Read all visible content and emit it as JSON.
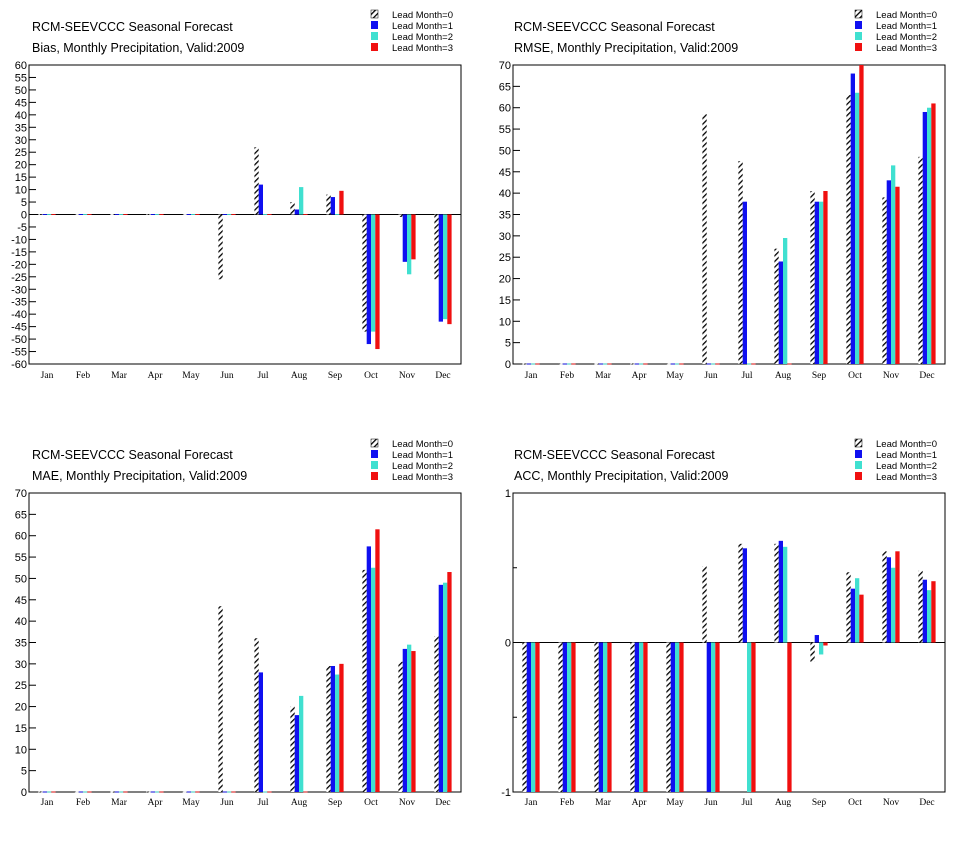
{
  "colors": {
    "lead0_pattern": "hatch-black-white",
    "lead1": "#1010f0",
    "lead2": "#40e0d0",
    "lead3": "#f01010",
    "axis": "#000000",
    "background": "#ffffff"
  },
  "chart_data": [
    {
      "type": "bar",
      "title": "RCM-SEEVCCC Seasonal Forecast",
      "subtitle": "Bias, Monthly Precipitation, Valid:2009",
      "categories": [
        "Jan",
        "Feb",
        "Mar",
        "Apr",
        "May",
        "Jun",
        "Jul",
        "Aug",
        "Sep",
        "Oct",
        "Nov",
        "Dec"
      ],
      "ylim": [
        -60,
        60
      ],
      "yticks": [
        60,
        55,
        50,
        45,
        40,
        35,
        30,
        25,
        20,
        15,
        10,
        5,
        0,
        -5,
        -10,
        -15,
        -20,
        -25,
        -30,
        -35,
        -40,
        -45,
        -50,
        -55,
        -60
      ],
      "legend_position": "top-right",
      "series": [
        {
          "name": "Lead Month=0",
          "values": [
            0,
            0,
            0,
            0,
            0,
            -26,
            27,
            5,
            8,
            -47,
            -1,
            -26
          ]
        },
        {
          "name": "Lead Month=1",
          "values": [
            0,
            0,
            0,
            0,
            0,
            0,
            12,
            2,
            7,
            -52,
            -19,
            -43
          ]
        },
        {
          "name": "Lead Month=2",
          "values": [
            0,
            0,
            0,
            0,
            0,
            0,
            0,
            11,
            0,
            -47,
            -24,
            -42
          ]
        },
        {
          "name": "Lead Month=3",
          "values": [
            0,
            0,
            0,
            0,
            0,
            0,
            0,
            0,
            9.5,
            -54,
            -18,
            -44
          ]
        }
      ]
    },
    {
      "type": "bar",
      "title": "RCM-SEEVCCC Seasonal Forecast",
      "subtitle": "RMSE, Monthly Precipitation, Valid:2009",
      "categories": [
        "Jan",
        "Feb",
        "Mar",
        "Apr",
        "May",
        "Jun",
        "Jul",
        "Aug",
        "Sep",
        "Oct",
        "Nov",
        "Dec"
      ],
      "ylim": [
        0,
        70
      ],
      "yticks": [
        70,
        65,
        60,
        55,
        50,
        45,
        40,
        35,
        30,
        25,
        20,
        15,
        10,
        5,
        0
      ],
      "legend_position": "top-right",
      "series": [
        {
          "name": "Lead Month=0",
          "values": [
            0,
            0,
            0,
            0,
            0,
            58.5,
            47.5,
            27,
            40.5,
            63,
            39,
            48.5
          ]
        },
        {
          "name": "Lead Month=1",
          "values": [
            0,
            0,
            0,
            0,
            0,
            0,
            38,
            24,
            38,
            68,
            43,
            59
          ]
        },
        {
          "name": "Lead Month=2",
          "values": [
            0,
            0,
            0,
            0,
            0,
            0,
            0,
            29.5,
            38,
            63.5,
            46.5,
            60
          ]
        },
        {
          "name": "Lead Month=3",
          "values": [
            0,
            0,
            0,
            0,
            0,
            0,
            0,
            0,
            40.5,
            70,
            41.5,
            61
          ]
        }
      ]
    },
    {
      "type": "bar",
      "title": "RCM-SEEVCCC Seasonal Forecast",
      "subtitle": "MAE, Monthly Precipitation, Valid:2009",
      "categories": [
        "Jan",
        "Feb",
        "Mar",
        "Apr",
        "May",
        "Jun",
        "Jul",
        "Aug",
        "Sep",
        "Oct",
        "Nov",
        "Dec"
      ],
      "ylim": [
        0,
        70
      ],
      "yticks": [
        70,
        65,
        60,
        55,
        50,
        45,
        40,
        35,
        30,
        25,
        20,
        15,
        10,
        5,
        0
      ],
      "legend_position": "top-right",
      "series": [
        {
          "name": "Lead Month=0",
          "values": [
            0,
            0,
            0,
            0,
            0,
            43.5,
            36,
            20,
            29.5,
            52,
            30.5,
            36.5
          ]
        },
        {
          "name": "Lead Month=1",
          "values": [
            0,
            0,
            0,
            0,
            0,
            0,
            28,
            18,
            29.5,
            57.5,
            33.5,
            48.5
          ]
        },
        {
          "name": "Lead Month=2",
          "values": [
            0,
            0,
            0,
            0,
            0,
            0,
            0,
            22.5,
            27.5,
            52.5,
            34.5,
            49
          ]
        },
        {
          "name": "Lead Month=3",
          "values": [
            0,
            0,
            0,
            0,
            0,
            0,
            0,
            0,
            30,
            61.5,
            33,
            51.5
          ]
        }
      ]
    },
    {
      "type": "bar",
      "title": "RCM-SEEVCCC Seasonal Forecast",
      "subtitle": "ACC, Monthly Precipitation, Valid:2009",
      "categories": [
        "Jan",
        "Feb",
        "Mar",
        "Apr",
        "May",
        "Jun",
        "Jul",
        "Aug",
        "Sep",
        "Oct",
        "Nov",
        "Dec"
      ],
      "ylim": [
        -1,
        1
      ],
      "yticks": [
        1,
        0,
        -1
      ],
      "minor_ticks": [
        0.5,
        -0.5
      ],
      "legend_position": "top-right",
      "series": [
        {
          "name": "Lead Month=0",
          "values": [
            -1,
            -1,
            -1,
            -1,
            -1,
            0.51,
            0.66,
            0.66,
            -0.13,
            0.47,
            0.61,
            0.48
          ]
        },
        {
          "name": "Lead Month=1",
          "values": [
            -1,
            -1,
            -1,
            -1,
            -1,
            -1,
            0.63,
            0.68,
            0.05,
            0.36,
            0.57,
            0.42
          ]
        },
        {
          "name": "Lead Month=2",
          "values": [
            -1,
            -1,
            -1,
            -1,
            -1,
            -1,
            -1,
            0.64,
            -0.08,
            0.43,
            0.5,
            0.35
          ]
        },
        {
          "name": "Lead Month=3",
          "values": [
            -1,
            -1,
            -1,
            -1,
            -1,
            -1,
            -1,
            -1,
            -0.02,
            0.32,
            0.61,
            0.41
          ]
        }
      ]
    }
  ]
}
